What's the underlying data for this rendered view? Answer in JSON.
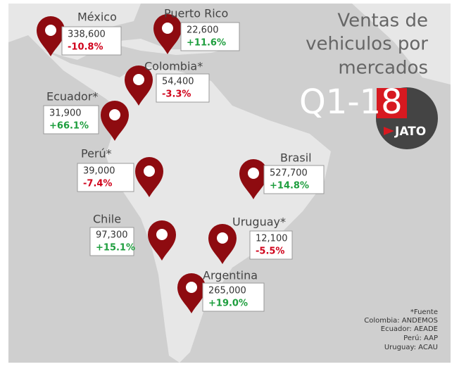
{
  "header": {
    "title_lines": [
      "Ventas de",
      "vehiculos por",
      "mercados"
    ],
    "period": "Q1-18",
    "brand": "JATO"
  },
  "markets": [
    {
      "name": "México",
      "units": "338,600",
      "change": "-10.8%",
      "color": "#d0021b"
    },
    {
      "name": "Puerto Rico",
      "units": "22,600",
      "change": "+11.6%",
      "color": "#1e9e3e"
    },
    {
      "name": "Colombia*",
      "units": "54,400",
      "change": "-3.3%",
      "color": "#d0021b"
    },
    {
      "name": "Ecuador*",
      "units": "31,900",
      "change": "+66.1%",
      "color": "#1e9e3e"
    },
    {
      "name": "Perú*",
      "units": "39,000",
      "change": "-7.4%",
      "color": "#d0021b"
    },
    {
      "name": "Brasil",
      "units": "527,700",
      "change": "+14.8%",
      "color": "#1e9e3e"
    },
    {
      "name": "Chile",
      "units": "97,300",
      "change": "+15.1%",
      "color": "#1e9e3e"
    },
    {
      "name": "Uruguay*",
      "units": "12,100",
      "change": "-5.5%",
      "color": "#d0021b"
    },
    {
      "name": "Argentina",
      "units": "265,000",
      "change": "+19.0%",
      "color": "#1e9e3e"
    }
  ],
  "sources": [
    "*Fuente",
    "Colombia: ANDEMOS",
    "Ecuador: AEADE",
    "Perú: AAP",
    "Uruguay: ACAU"
  ]
}
